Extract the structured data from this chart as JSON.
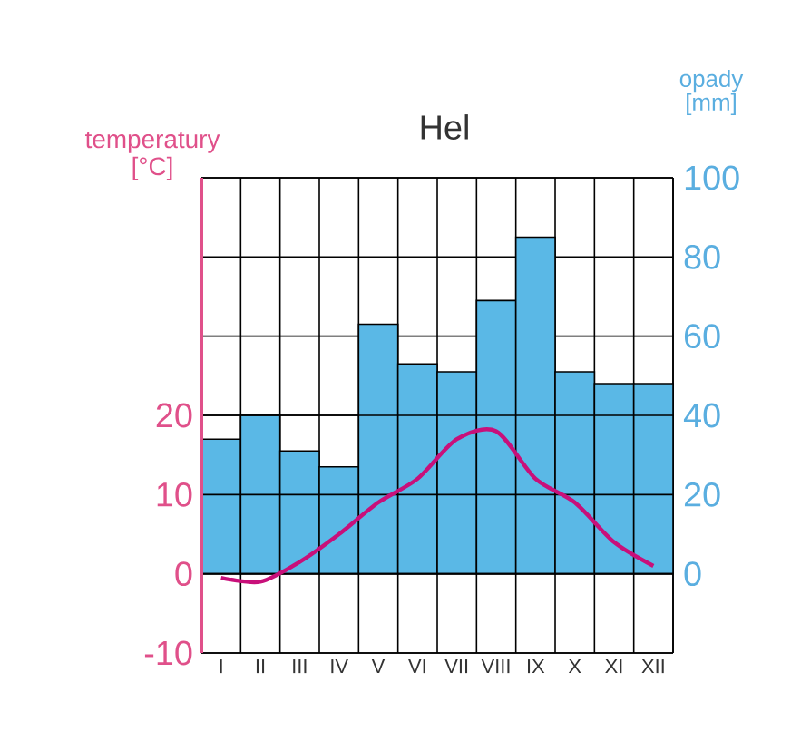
{
  "chart_data": {
    "type": "bar",
    "title": "Hel",
    "ylabel": "temperatury [°C]",
    "y2label": "opady [mm]",
    "categories": [
      "I",
      "II",
      "III",
      "IV",
      "V",
      "VI",
      "VII",
      "VIII",
      "IX",
      "X",
      "XI",
      "XII"
    ],
    "series": [
      {
        "axis": "y2",
        "color": "#5ab8e6",
        "values": [
          34,
          40,
          31,
          27,
          63,
          53,
          51,
          69,
          85,
          51,
          48,
          48
        ]
      },
      {
        "type": "line",
        "axis": "y",
        "color": "#c8107a",
        "values": [
          -0.5,
          -1,
          1.5,
          5,
          9,
          12,
          17,
          18,
          12,
          9,
          4,
          1
        ]
      }
    ],
    "ylim": [
      -10,
      50
    ],
    "yticks": [
      -10,
      0,
      10,
      20
    ],
    "y2lim": [
      -20,
      100
    ],
    "y2ticks": [
      0,
      20,
      40,
      60,
      80,
      100
    ],
    "grid": true
  }
}
